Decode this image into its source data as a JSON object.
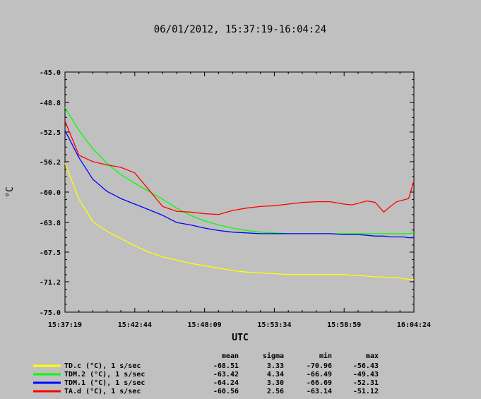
{
  "chart_data": {
    "type": "line",
    "title": "06/01/2012, 15:37:19-16:04:24",
    "xlabel": "UTC",
    "ylabel": "°C",
    "ylim": [
      -75.0,
      -45.0
    ],
    "yticks": [
      "-45.0",
      "-48.8",
      "-52.5",
      "-56.2",
      "-60.0",
      "-63.8",
      "-67.5",
      "-71.2",
      "-75.0"
    ],
    "yticks_values": [
      -45.0,
      -48.8,
      -52.5,
      -56.2,
      -60.0,
      -63.8,
      -67.5,
      -71.2,
      -75.0
    ],
    "xticks": [
      "15:37:19",
      "15:42:44",
      "15:48:09",
      "15:53:34",
      "15:58:59",
      "16:04:24"
    ],
    "xlim": [
      "15:37:19",
      "16:04:24"
    ],
    "x": [
      "15:37:19",
      "15:38:24",
      "15:39:29",
      "15:40:34",
      "15:41:39",
      "15:42:44",
      "15:43:49",
      "15:44:54",
      "15:45:59",
      "15:47:04",
      "15:48:09",
      "15:49:14",
      "15:50:19",
      "15:51:24",
      "15:52:29",
      "15:53:34",
      "15:54:39",
      "15:55:44",
      "15:56:49",
      "15:57:54",
      "15:58:59",
      "15:59:36",
      "16:00:04",
      "16:00:46",
      "16:01:24",
      "16:02:04",
      "16:02:34",
      "16:03:04",
      "16:03:34",
      "16:04:00",
      "16:04:24"
    ],
    "legend_header": {
      "mean": "mean",
      "sigma": "sigma",
      "min": "min",
      "max": "max"
    },
    "series": [
      {
        "name": "TD.c (°C), 1 s/sec",
        "color": "#ffff00",
        "stats": {
          "mean": "-68.51",
          "sigma": "3.33",
          "min": "-70.96",
          "max": "-56.43"
        },
        "values": [
          -56.4,
          -60.9,
          -63.7,
          -64.9,
          -65.8,
          -66.7,
          -67.5,
          -68.1,
          -68.5,
          -68.9,
          -69.2,
          -69.5,
          -69.8,
          -70.0,
          -70.1,
          -70.2,
          -70.3,
          -70.3,
          -70.3,
          -70.3,
          -70.3,
          -70.4,
          -70.4,
          -70.5,
          -70.6,
          -70.6,
          -70.7,
          -70.7,
          -70.8,
          -70.9,
          -70.96
        ]
      },
      {
        "name": "TDM.2 (°C), 1 s/sec",
        "color": "#00ff00",
        "stats": {
          "mean": "-63.42",
          "sigma": "4.34",
          "min": "-66.49",
          "max": "-49.43"
        },
        "values": [
          -49.43,
          -52.3,
          -54.6,
          -56.4,
          -57.8,
          -58.9,
          -59.9,
          -60.9,
          -62.0,
          -62.9,
          -63.6,
          -64.1,
          -64.5,
          -64.8,
          -65.0,
          -65.1,
          -65.2,
          -65.2,
          -65.2,
          -65.2,
          -65.2,
          -65.2,
          -65.2,
          -65.2,
          -65.2,
          -65.2,
          -65.2,
          -65.2,
          -65.2,
          -65.2,
          -65.1
        ]
      },
      {
        "name": "TDM.1 (°C), 1 s/sec",
        "color": "#0000ff",
        "stats": {
          "mean": "-64.24",
          "sigma": "3.30",
          "min": "-66.69",
          "max": "-52.31"
        },
        "values": [
          -52.31,
          -55.7,
          -58.4,
          -59.9,
          -60.8,
          -61.5,
          -62.2,
          -62.9,
          -63.8,
          -64.1,
          -64.5,
          -64.8,
          -65.0,
          -65.1,
          -65.2,
          -65.2,
          -65.2,
          -65.2,
          -65.2,
          -65.2,
          -65.3,
          -65.3,
          -65.3,
          -65.4,
          -65.5,
          -65.5,
          -65.6,
          -65.6,
          -65.6,
          -65.7,
          -65.7
        ]
      },
      {
        "name": "TA.d (°C), 1 s/sec",
        "color": "#ff0000",
        "stats": {
          "mean": "-60.56",
          "sigma": "2.56",
          "min": "-63.14",
          "max": "-51.12"
        },
        "values": [
          -51.12,
          -55.4,
          -56.2,
          -56.6,
          -56.9,
          -57.6,
          -59.7,
          -61.8,
          -62.4,
          -62.5,
          -62.7,
          -62.8,
          -62.3,
          -62.0,
          -61.8,
          -61.7,
          -61.5,
          -61.3,
          -61.2,
          -61.2,
          -61.5,
          -61.6,
          -61.4,
          -61.1,
          -61.3,
          -62.5,
          -61.8,
          -61.2,
          -61.0,
          -60.8,
          -58.6
        ]
      }
    ]
  }
}
